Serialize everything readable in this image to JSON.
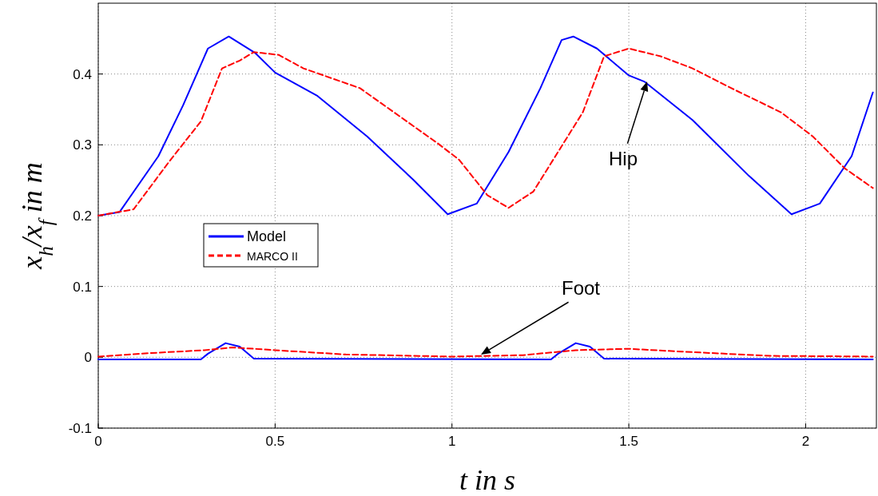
{
  "chart_data": {
    "type": "line",
    "xlabel": "t in s",
    "ylabel": "x$_{h}$/x$_{f}$ in m",
    "xlim": [
      0,
      2.2
    ],
    "ylim": [
      -0.1,
      0.5
    ],
    "xticks": [
      0,
      0.5,
      1,
      1.5,
      2
    ],
    "yticks": [
      -0.1,
      0,
      0.1,
      0.2,
      0.3,
      0.4
    ],
    "grid": true,
    "legend": "left",
    "annotations": [
      "Hip",
      "Foot"
    ],
    "series": [
      {
        "name": "Model",
        "color": "#0000ff",
        "line_style": "solid",
        "x": [
          0,
          0.06,
          0.17,
          0.24,
          0.31,
          0.369,
          0.443,
          0.5,
          0.62,
          0.76,
          0.89,
          0.988,
          1.07,
          1.16,
          1.25,
          1.31,
          1.343,
          1.41,
          1.5,
          1.545,
          1.68,
          1.84,
          1.96,
          2.04,
          2.13,
          2.19
        ],
        "values": [
          0.2,
          0.205,
          0.284,
          0.356,
          0.436,
          0.453,
          0.43,
          0.402,
          0.369,
          0.312,
          0.251,
          0.202,
          0.217,
          0.29,
          0.38,
          0.448,
          0.453,
          0.436,
          0.398,
          0.389,
          0.335,
          0.256,
          0.202,
          0.217,
          0.284,
          0.374
        ]
      },
      {
        "name": "MARCO II",
        "color": "#ff0000",
        "line_style": "dashed",
        "x": [
          0,
          0.1,
          0.2,
          0.29,
          0.35,
          0.4,
          0.44,
          0.51,
          0.58,
          0.74,
          0.85,
          0.96,
          1.02,
          1.1,
          1.16,
          1.23,
          1.3,
          1.37,
          1.43,
          1.5,
          1.59,
          1.68,
          1.79,
          1.93,
          2.02,
          2.11,
          2.19
        ],
        "values": [
          0.2,
          0.209,
          0.276,
          0.333,
          0.408,
          0.419,
          0.431,
          0.427,
          0.408,
          0.38,
          0.341,
          0.302,
          0.279,
          0.229,
          0.211,
          0.234,
          0.29,
          0.346,
          0.425,
          0.436,
          0.425,
          0.408,
          0.38,
          0.346,
          0.312,
          0.267,
          0.239
        ]
      },
      {
        "color": "#0000ff",
        "line_style": "solid",
        "x": [
          0,
          0.29,
          0.31,
          0.36,
          0.4,
          0.44,
          1.28,
          1.3,
          1.35,
          1.39,
          1.43,
          2.19
        ],
        "values": [
          -0.003,
          -0.003,
          0.005,
          0.02,
          0.015,
          -0.002,
          -0.003,
          0.005,
          0.02,
          0.015,
          -0.002,
          -0.003
        ]
      },
      {
        "color": "#ff0000",
        "line_style": "dashed",
        "x": [
          0,
          0.15,
          0.3,
          0.38,
          0.5,
          0.7,
          1.0,
          1.2,
          1.35,
          1.5,
          1.65,
          1.9,
          2.19
        ],
        "values": [
          0.001,
          0.006,
          0.01,
          0.014,
          0.01,
          0.004,
          0.001,
          0.003,
          0.01,
          0.012,
          0.008,
          0.002,
          0.001
        ]
      }
    ]
  }
}
